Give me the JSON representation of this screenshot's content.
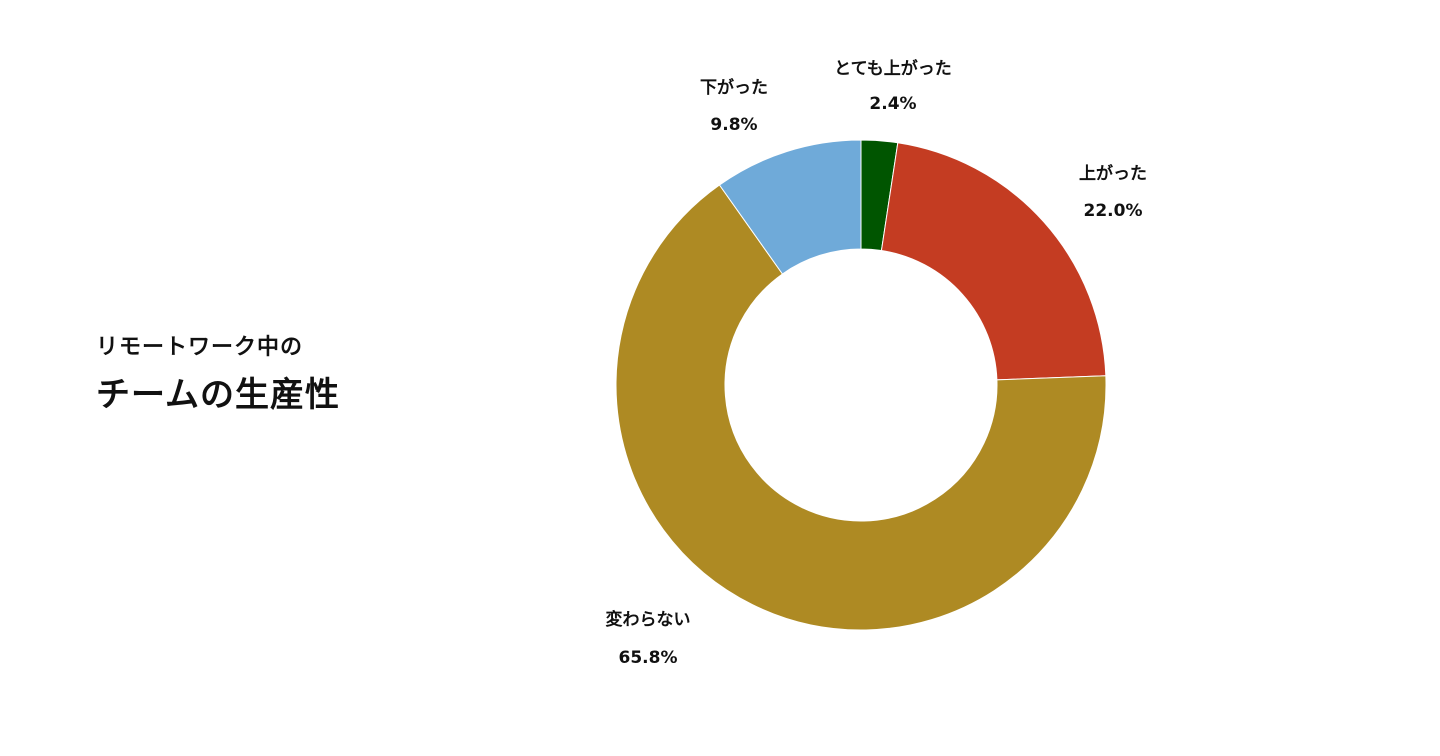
{
  "header": {
    "subtitle": "リモートワーク中の",
    "title": "チームの生産性"
  },
  "chart_data": {
    "type": "pie",
    "variant": "donut",
    "title": "チームの生産性",
    "subtitle": "リモートワーク中の",
    "slices": [
      {
        "label": "とても上がった",
        "value": 2.4,
        "display": "2.4%",
        "color": "#005500"
      },
      {
        "label": "上がった",
        "value": 22.0,
        "display": "22.0%",
        "color": "#c43c22"
      },
      {
        "label": "変わらない",
        "value": 65.8,
        "display": "65.8%",
        "color": "#ae8a23"
      },
      {
        "label": "下がった",
        "value": 9.8,
        "display": "9.8%",
        "color": "#6faad9"
      }
    ],
    "start_angle": "12 o'clock",
    "direction": "clockwise",
    "legend": "none"
  }
}
